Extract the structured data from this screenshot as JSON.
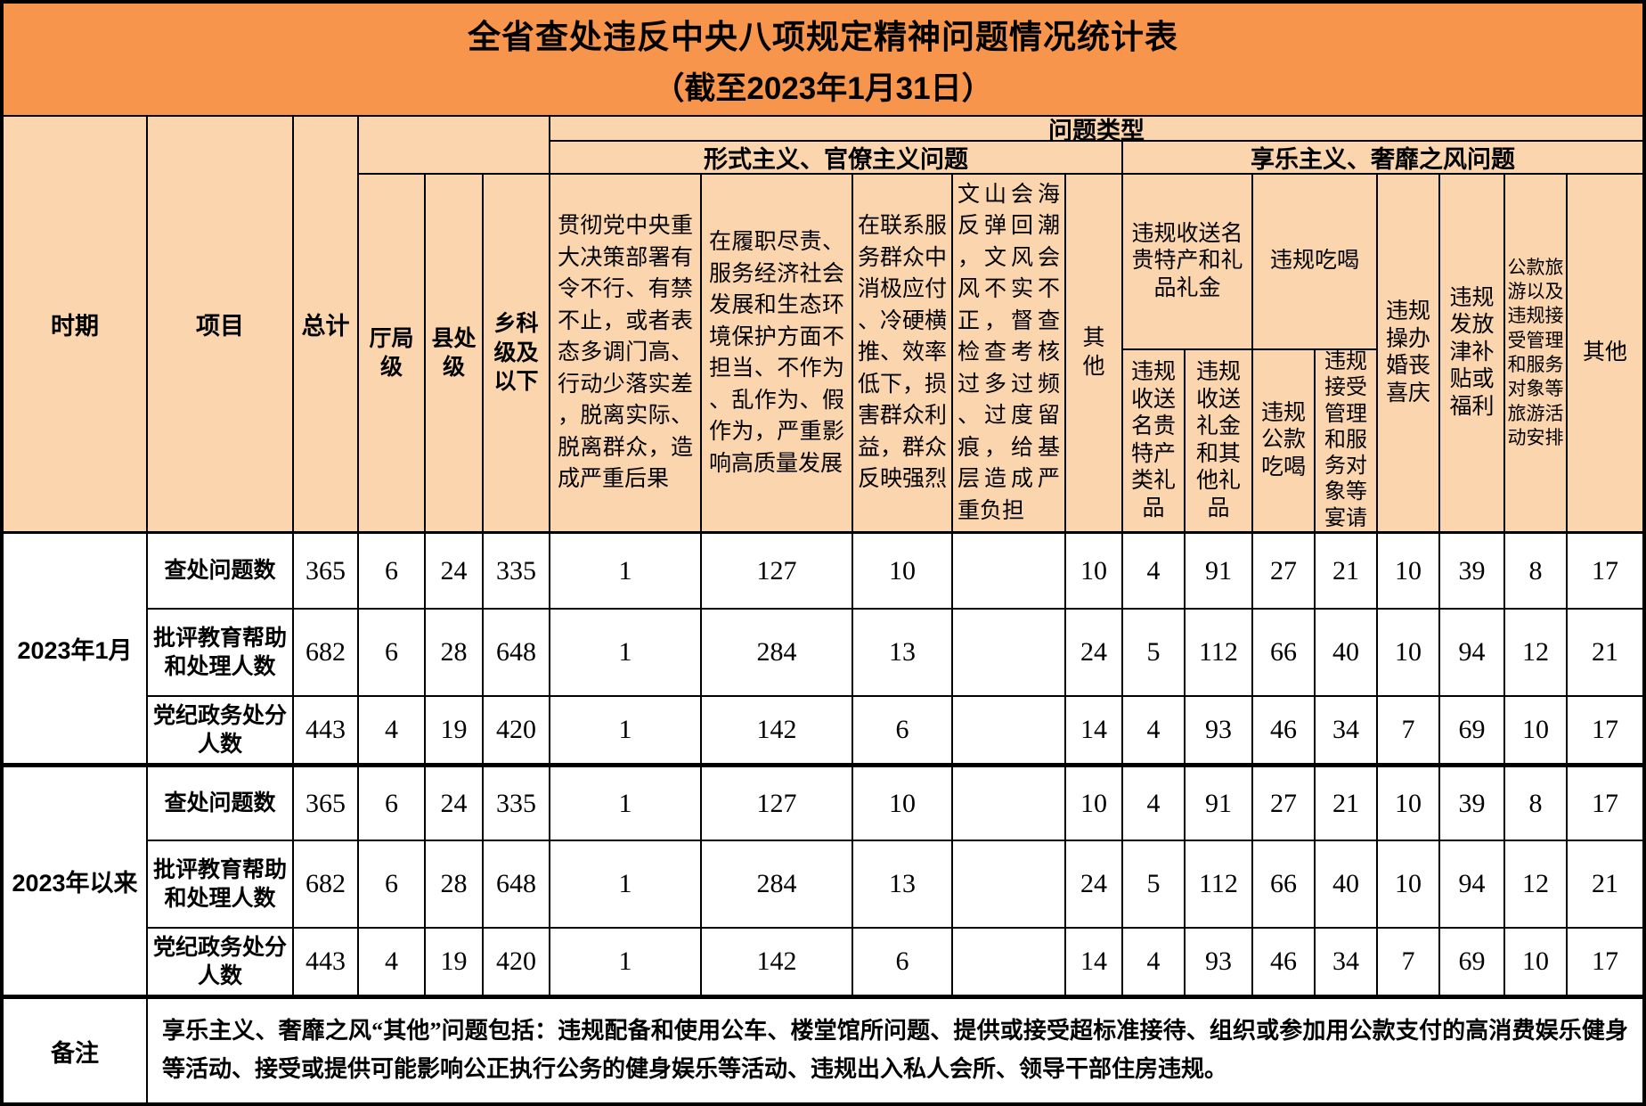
{
  "title": {
    "line1": "全省查处违反中央八项规定精神问题情况统计表",
    "line2": "（截至2023年1月31日）"
  },
  "header": {
    "period": "时期",
    "item": "项目",
    "total": "总计",
    "problem_type": "问题类型",
    "rank_levels": [
      "厅局级",
      "县处级",
      "乡科级及以下"
    ],
    "sections": {
      "formalism": {
        "label": "形式主义、官僚主义问题",
        "columns": [
          "贯彻党中央重大决策部署有令不行、有禁不止，或者表态多调门高、行动少落实差，脱离实际、脱离群众，造成严重后果",
          "在履职尽责、服务经济社会发展和生态环境保护方面不担当、不作为、乱作为、假作为，严重影响高质量发展",
          "在联系服务群众中消极应付、冷硬横推、效率低下，损害群众利益，群众反映强烈",
          "文山会海反弹回潮，文风会风不实不正，督查检查考核过多过频、过度留痕，给基层造成严重负担",
          "其他"
        ]
      },
      "hedonism": {
        "label": "享乐主义、奢靡之风问题",
        "groups": {
          "gifts": "违规收送名贵特产和礼品礼金",
          "dining": "违规吃喝"
        },
        "columns": [
          "违规收送名贵特产类礼品",
          "违规收送礼金和其他礼品",
          "违规公款吃喝",
          "违规接受管理和服务对象等宴请",
          "违规操办婚丧喜庆",
          "违规发放津补贴或福利",
          "公款旅游以及违规接受管理和服务对象等旅游活动安排",
          "其他"
        ]
      }
    }
  },
  "blocks": [
    {
      "period": "2023年1月",
      "rows": [
        {
          "label": "查处问题数",
          "values": [
            "365",
            "6",
            "24",
            "335",
            "1",
            "127",
            "10",
            "",
            "10",
            "4",
            "91",
            "27",
            "21",
            "10",
            "39",
            "8",
            "17"
          ]
        },
        {
          "label": "批评教育帮助和处理人数",
          "values": [
            "682",
            "6",
            "28",
            "648",
            "1",
            "284",
            "13",
            "",
            "24",
            "5",
            "112",
            "66",
            "40",
            "10",
            "94",
            "12",
            "21"
          ]
        },
        {
          "label": "党纪政务处分人数",
          "values": [
            "443",
            "4",
            "19",
            "420",
            "1",
            "142",
            "6",
            "",
            "14",
            "4",
            "93",
            "46",
            "34",
            "7",
            "69",
            "10",
            "17"
          ]
        }
      ]
    },
    {
      "period": "2023年以来",
      "rows": [
        {
          "label": "查处问题数",
          "values": [
            "365",
            "6",
            "24",
            "335",
            "1",
            "127",
            "10",
            "",
            "10",
            "4",
            "91",
            "27",
            "21",
            "10",
            "39",
            "8",
            "17"
          ]
        },
        {
          "label": "批评教育帮助和处理人数",
          "values": [
            "682",
            "6",
            "28",
            "648",
            "1",
            "284",
            "13",
            "",
            "24",
            "5",
            "112",
            "66",
            "40",
            "10",
            "94",
            "12",
            "21"
          ]
        },
        {
          "label": "党纪政务处分人数",
          "values": [
            "443",
            "4",
            "19",
            "420",
            "1",
            "142",
            "6",
            "",
            "14",
            "4",
            "93",
            "46",
            "34",
            "7",
            "69",
            "10",
            "17"
          ]
        }
      ]
    }
  ],
  "remark": {
    "label": "备注",
    "text": "享乐主义、奢靡之风“其他”问题包括：违规配备和使用公车、楼堂馆所问题、提供或接受超标准接待、组织或参加用公款支付的高消费娱乐健身等活动、接受或提供可能影响公正执行公务的健身娱乐等活动、违规出入私人会所、领导干部住房违规。"
  },
  "colors": {
    "title_bg": "#F6954B",
    "header_bg": "#FBD5AE",
    "border": "#000000"
  }
}
